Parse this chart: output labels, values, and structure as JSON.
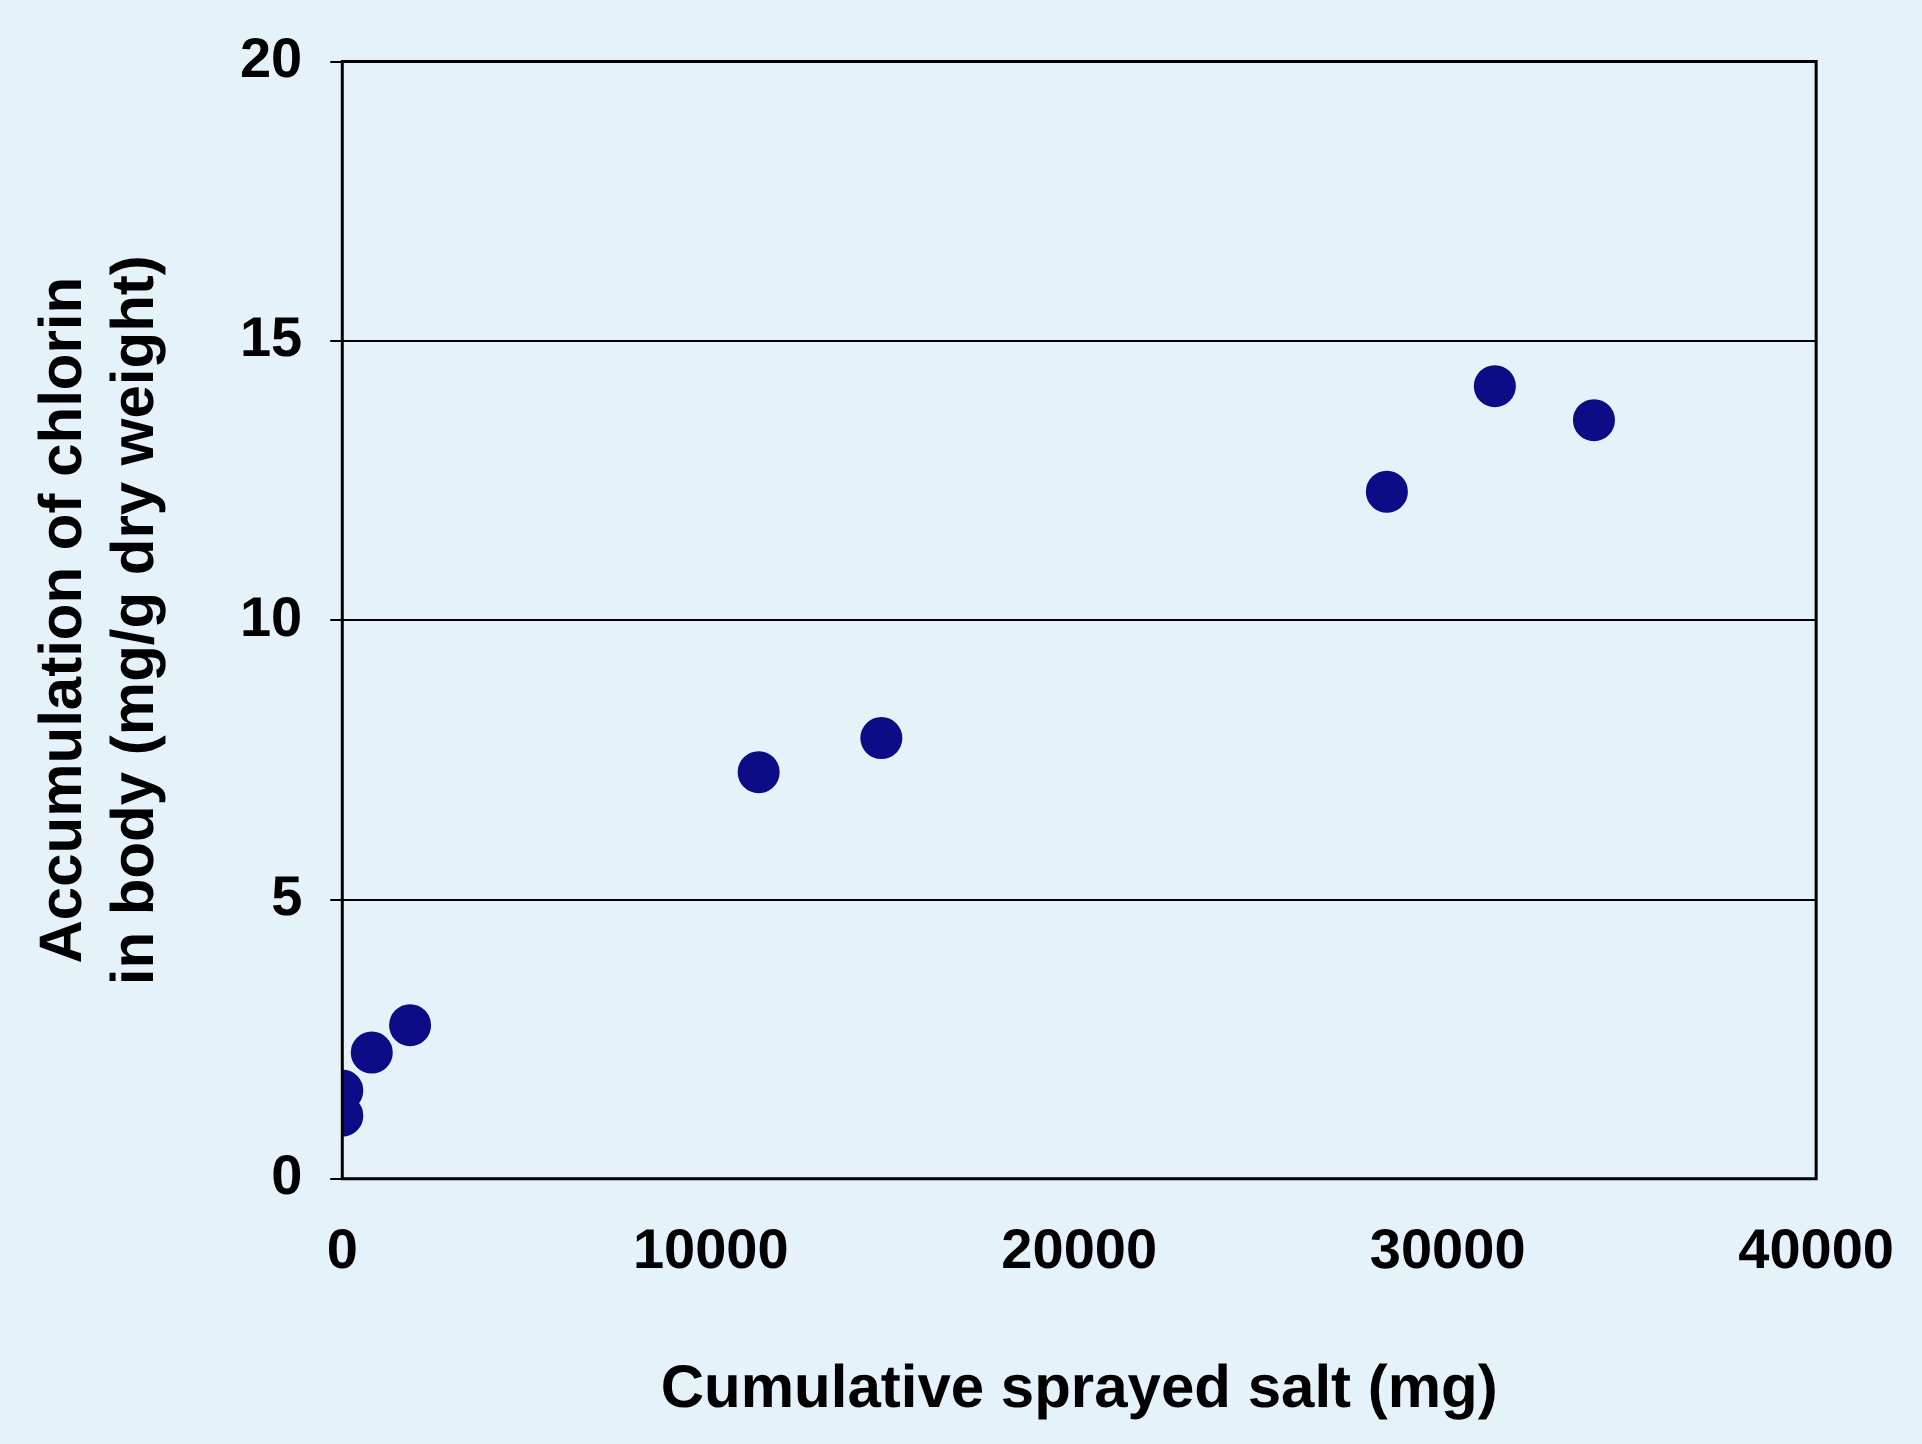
{
  "chart_data": {
    "type": "scatter",
    "xlabel": "Cumulative sprayed salt (mg)",
    "ylabel": "Accumulation of chlorin\nin body (mg/g dry weight)",
    "x": [
      0,
      0,
      800,
      1840,
      11300,
      14630,
      28350,
      31280,
      33970
    ],
    "series": [
      {
        "color": "#0c0c86",
        "values": [
          1.13,
          1.58,
          2.26,
          2.75,
          7.28,
          7.89,
          12.3,
          14.19,
          13.58
        ]
      }
    ],
    "xlim": [
      0,
      40000
    ],
    "xticks": [
      0,
      10000,
      20000,
      30000,
      40000
    ],
    "ylim": [
      0,
      20
    ],
    "yticks": [
      0,
      5,
      10,
      15,
      20
    ],
    "grid": "y",
    "legend": false,
    "marker": "circle"
  }
}
